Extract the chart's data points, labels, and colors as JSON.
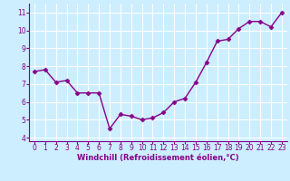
{
  "x": [
    0,
    1,
    2,
    3,
    4,
    5,
    6,
    7,
    8,
    9,
    10,
    11,
    12,
    13,
    14,
    15,
    16,
    17,
    18,
    19,
    20,
    21,
    22,
    23
  ],
  "y": [
    7.7,
    7.8,
    7.1,
    7.2,
    6.5,
    6.5,
    6.5,
    4.5,
    5.3,
    5.2,
    5.0,
    5.1,
    5.4,
    6.0,
    6.2,
    7.1,
    8.2,
    9.4,
    9.5,
    10.1,
    10.5,
    10.5,
    10.2,
    11.0
  ],
  "line_color": "#880088",
  "marker": "D",
  "marker_size": 2.5,
  "bg_color": "#cceeff",
  "grid_color": "#ffffff",
  "xlabel": "Windchill (Refroidissement éolien,°C)",
  "xlim": [
    -0.5,
    23.5
  ],
  "ylim": [
    3.8,
    11.5
  ],
  "yticks": [
    4,
    5,
    6,
    7,
    8,
    9,
    10,
    11
  ],
  "xticks": [
    0,
    1,
    2,
    3,
    4,
    5,
    6,
    7,
    8,
    9,
    10,
    11,
    12,
    13,
    14,
    15,
    16,
    17,
    18,
    19,
    20,
    21,
    22,
    23
  ],
  "tick_color": "#880088",
  "label_color": "#880088",
  "spine_color": "#880088",
  "font_size_ticks": 5.5,
  "font_size_xlabel": 6.0,
  "line_width": 1.0
}
